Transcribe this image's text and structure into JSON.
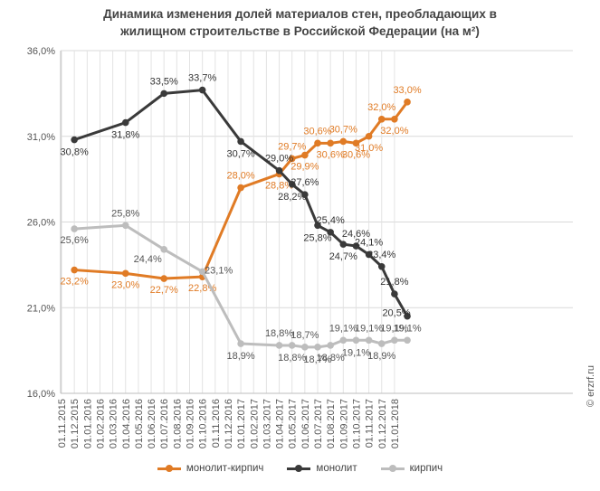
{
  "chart_data": {
    "type": "line",
    "title": [
      "Динамика изменения долей материалов стен, преобладающих в",
      "жилищном строительстве в Российской Федерации (на м²)"
    ],
    "categories": [
      "01.11.2015",
      "01.12.2015",
      "01.01.2016",
      "01.02.2016",
      "01.03.2016",
      "01.04.2016",
      "01.05.2016",
      "01.06.2016",
      "01.07.2016",
      "01.08.2016",
      "01.09.2016",
      "01.10.2016",
      "01.11.2016",
      "01.12.2016",
      "01.01.2017",
      "01.02.2017",
      "01.03.2017",
      "01.04.2017",
      "01.05.2017",
      "01.06.2017",
      "01.07.2017",
      "01.08.2017",
      "01.09.2017",
      "01.10.2017",
      "01.11.2017",
      "01.12.2017",
      "01.01.2018"
    ],
    "y_ticks": [
      "16,0%",
      "21,0%",
      "26,0%",
      "31,0%",
      "36,0%"
    ],
    "ylim": [
      16,
      36
    ],
    "grid": true,
    "legend_position": "bottom",
    "series": [
      {
        "name": "монолит-кирпич",
        "color": "#e07b25",
        "points": [
          [
            "01.12.2015",
            23.2
          ],
          [
            "01.04.2016",
            23.0
          ],
          [
            "01.07.2016",
            22.7
          ],
          [
            "01.10.2016",
            22.8
          ],
          [
            "01.01.2017",
            28.0
          ],
          [
            "01.04.2017",
            28.8
          ],
          [
            "01.05.2017",
            29.7
          ],
          [
            "01.06.2017",
            29.9
          ],
          [
            "01.07.2017",
            30.6
          ],
          [
            "01.08.2017",
            30.6
          ],
          [
            "01.09.2017",
            30.7
          ],
          [
            "01.10.2017",
            30.6
          ],
          [
            "01.11.2017",
            31.0
          ],
          [
            "01.12.2017",
            32.0
          ],
          [
            "01.01.2018",
            32.0
          ],
          [
            "01.02.2018",
            33.0
          ]
        ],
        "labels": [
          "23,2%",
          "23,0%",
          "22,7%",
          "22,8%",
          "28,0%",
          "28,8%",
          "29,7%",
          "29,9%",
          "30,6%",
          "30,6%",
          "30,7%",
          "30,6%",
          "31,0%",
          "32,0%",
          "32,0%",
          "33,0%"
        ]
      },
      {
        "name": "монолит",
        "color": "#3a3a3a",
        "points": [
          [
            "01.12.2015",
            30.8
          ],
          [
            "01.04.2016",
            31.8
          ],
          [
            "01.07.2016",
            33.5
          ],
          [
            "01.10.2016",
            33.7
          ],
          [
            "01.01.2017",
            30.7
          ],
          [
            "01.04.2017",
            29.0
          ],
          [
            "01.05.2017",
            28.2
          ],
          [
            "01.06.2017",
            27.6
          ],
          [
            "01.07.2017",
            25.8
          ],
          [
            "01.08.2017",
            25.4
          ],
          [
            "01.09.2017",
            24.7
          ],
          [
            "01.10.2017",
            24.6
          ],
          [
            "01.11.2017",
            24.1
          ],
          [
            "01.12.2017",
            23.4
          ],
          [
            "01.01.2018",
            21.8
          ],
          [
            "01.02.2018",
            20.5
          ]
        ],
        "labels": [
          "30,8%",
          "31,8%",
          "33,5%",
          "33,7%",
          "30,7%",
          "29,0%",
          "28,2%",
          "27,6%",
          "25,8%",
          "25,4%",
          "24,7%",
          "24,6%",
          "24,1%",
          "23,4%",
          "21,8%",
          "20,5%"
        ]
      },
      {
        "name": "кирпич",
        "color": "#bdbdbd",
        "points": [
          [
            "01.12.2015",
            25.6
          ],
          [
            "01.04.2016",
            25.8
          ],
          [
            "01.07.2016",
            24.4
          ],
          [
            "01.10.2016",
            23.1
          ],
          [
            "01.01.2017",
            18.9
          ],
          [
            "01.04.2017",
            18.8
          ],
          [
            "01.05.2017",
            18.8
          ],
          [
            "01.06.2017",
            18.7
          ],
          [
            "01.07.2017",
            18.7
          ],
          [
            "01.08.2017",
            18.8
          ],
          [
            "01.09.2017",
            19.1
          ],
          [
            "01.10.2017",
            19.1
          ],
          [
            "01.11.2017",
            19.1
          ],
          [
            "01.12.2017",
            18.9
          ],
          [
            "01.01.2018",
            19.1
          ],
          [
            "01.02.2018",
            19.1
          ]
        ],
        "labels": [
          "25,6%",
          "25,8%",
          "24,4%",
          "23,1%",
          "18,9%",
          "18,8%",
          "18,8%",
          "18,7%",
          "18,7%",
          "18,8%",
          "19,1%",
          "19,1%",
          "19,1%",
          "18,9%",
          "19,1%",
          "19,1%"
        ]
      }
    ]
  },
  "copyright": "© erzrf.ru"
}
